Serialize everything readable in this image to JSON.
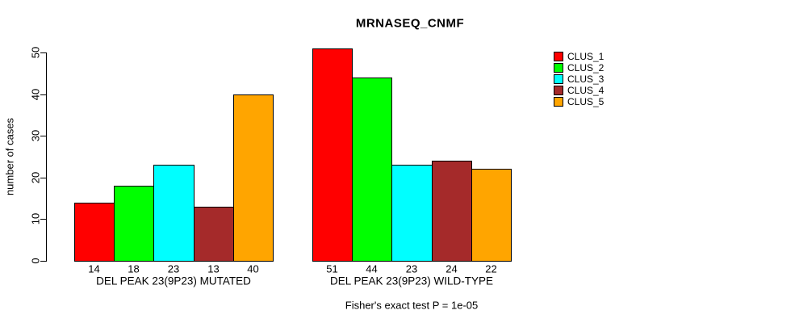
{
  "title": "MRNASEQ_CNMF",
  "footer": "Fisher's exact test P = 1e-05",
  "chart_data": {
    "type": "bar",
    "title": "MRNASEQ_CNMF",
    "xlabel": "",
    "ylabel": "number of cases",
    "ylim": [
      0,
      50
    ],
    "yticks": [
      0,
      10,
      20,
      30,
      40,
      50
    ],
    "grid": false,
    "bar_borders": true,
    "value_labels_under_bars": true,
    "legend_position": "top-right",
    "categories": [
      "DEL PEAK 23(9P23) MUTATED",
      "DEL PEAK 23(9P23) WILD-TYPE"
    ],
    "series": [
      {
        "name": "CLUS_1",
        "color": "#ff0000",
        "values": [
          14,
          51
        ]
      },
      {
        "name": "CLUS_2",
        "color": "#00ff00",
        "values": [
          18,
          44
        ]
      },
      {
        "name": "CLUS_3",
        "color": "#00ffff",
        "values": [
          23,
          23
        ]
      },
      {
        "name": "CLUS_4",
        "color": "#a52a2a",
        "values": [
          13,
          24
        ]
      },
      {
        "name": "CLUS_5",
        "color": "#ffa500",
        "values": [
          40,
          22
        ]
      }
    ],
    "annotation": "Fisher's exact test P = 1e-05"
  }
}
